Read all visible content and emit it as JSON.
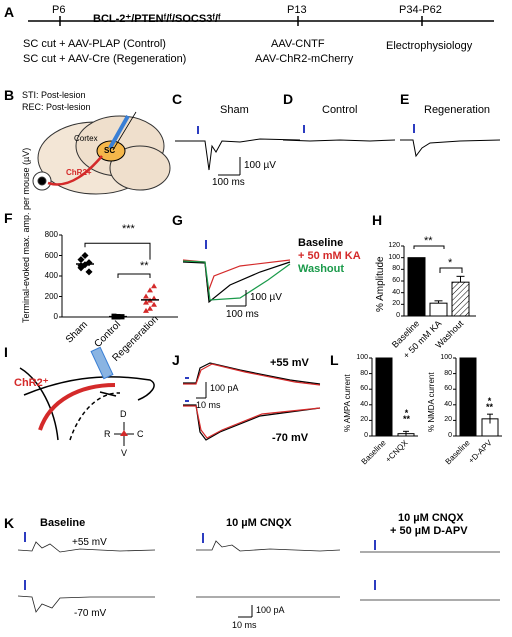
{
  "panel_a": {
    "label": "A",
    "genotype": "BCL-2⁺/PTENᶠ/ᶠ/SOCS3ᶠ/ᶠ",
    "tick_p6": "P6",
    "tick_p13": "P13",
    "tick_p34": "P34-P62",
    "line1": "SC cut + AAV-PLAP (Control)",
    "line2": "SC cut + AAV-Cre (Regeneration)",
    "line3": "AAV-CNTF",
    "line4": "AAV-ChR2-mCherry",
    "line5": "Electrophysiology"
  },
  "panel_b": {
    "label": "B",
    "sti": "STI: Post-lesion",
    "rec": "REC: Post-lesion",
    "cortex": "Cortex",
    "sc": "SC",
    "chr2": "ChR2+"
  },
  "panel_c": {
    "label": "C",
    "title": "Sham",
    "scale_y": "100 µV",
    "scale_x": "100 ms"
  },
  "panel_d": {
    "label": "D",
    "title": "Control"
  },
  "panel_e": {
    "label": "E",
    "title": "Regeneration"
  },
  "panel_f": {
    "label": "F",
    "ylabel": "Terminal-evoked max. amp. per mouse (µV)",
    "sig1": "***",
    "sig2": "**"
  },
  "panel_g": {
    "label": "G",
    "leg1": "Baseline",
    "leg2": "+ 50 mM KA",
    "leg3": "Washout",
    "scale_y": "100 µV",
    "scale_x": "100 ms"
  },
  "panel_h": {
    "label": "H",
    "sig1": "**",
    "sig2": "*"
  },
  "panel_i": {
    "label": "I",
    "chr2": "ChR2⁺",
    "d": "D",
    "v": "V",
    "r": "R",
    "c": "C"
  },
  "panel_j": {
    "label": "J",
    "v1": "+55 mV",
    "v2": "-70 mV",
    "scale_y": "100 pA",
    "scale_x": "10 ms"
  },
  "panel_l": {
    "label": "L",
    "sig1": "*\n**",
    "sig2": "*\n**"
  },
  "panel_k": {
    "label": "K",
    "col1": "Baseline",
    "col2": "10 µM CNQX",
    "col3a": "10 µM CNQX",
    "col3b": "+ 50 µM D-APV",
    "v1": "+55 mV",
    "v2": "-70 mV",
    "scale_y": "100 pA",
    "scale_x": "10 ms"
  },
  "chart_data": [
    {
      "panel": "F",
      "type": "scatter",
      "title": "",
      "xlabel": "",
      "ylabel": "Terminal-evoked max. amp. per mouse (µV)",
      "categories": [
        "Sham",
        "Control",
        "Regeneration"
      ],
      "ylim": [
        0,
        800
      ],
      "yticks": [
        0,
        200,
        400,
        600,
        800
      ],
      "series": [
        {
          "name": "",
          "values": [
            [
              480,
              510,
              530,
              560,
              600,
              440,
              500
            ],
            [
              0,
              5,
              2,
              8,
              0,
              3,
              6
            ],
            [
              60,
              80,
              120,
              140,
              160,
              180,
              200,
              260,
              300
            ]
          ]
        }
      ],
      "colors": [
        "#000000",
        "#000000",
        "#d42a2a"
      ]
    },
    {
      "panel": "H",
      "type": "bar",
      "title": "",
      "xlabel": "",
      "ylabel": "% Amplitude",
      "categories": [
        "Baseline",
        "+ 50 mM KA",
        "Washout"
      ],
      "values": [
        100,
        22,
        58
      ],
      "errors": [
        0,
        4,
        10
      ],
      "ylim": [
        0,
        120
      ],
      "yticks": [
        0,
        20,
        40,
        60,
        80,
        100,
        120
      ]
    },
    {
      "panel": "L-left",
      "type": "bar",
      "title": "",
      "xlabel": "",
      "ylabel": "% AMPA current",
      "categories": [
        "Baseline",
        "+CNQX"
      ],
      "values": [
        100,
        3
      ],
      "errors": [
        0,
        3
      ],
      "ylim": [
        0,
        100
      ],
      "yticks": [
        0,
        20,
        40,
        60,
        80,
        100
      ]
    },
    {
      "panel": "L-right",
      "type": "bar",
      "title": "",
      "xlabel": "",
      "ylabel": "% NMDA current",
      "categories": [
        "Baseline",
        "+D-APV"
      ],
      "values": [
        100,
        22
      ],
      "errors": [
        0,
        6
      ],
      "ylim": [
        0,
        100
      ],
      "yticks": [
        0,
        20,
        40,
        60,
        80,
        100
      ]
    }
  ]
}
